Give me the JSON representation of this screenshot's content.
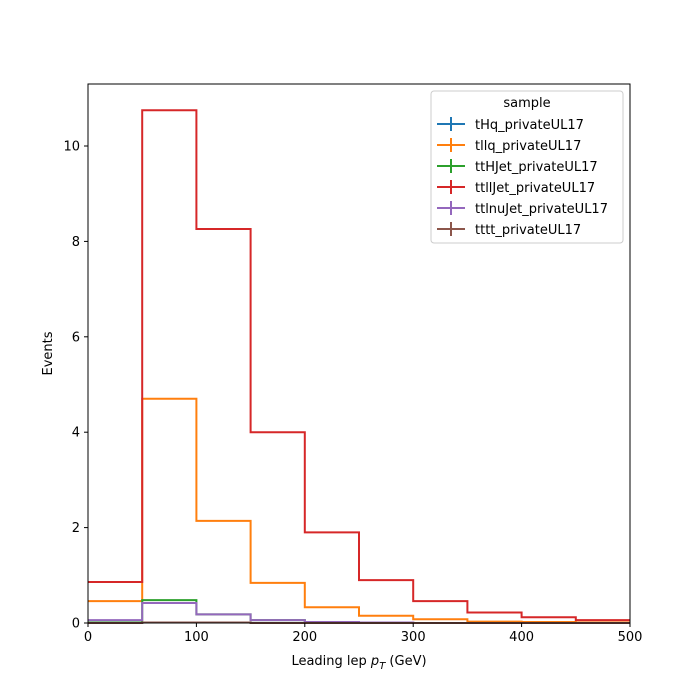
{
  "chart_data": {
    "type": "line",
    "drawstyle": "step-histogram",
    "xlabel": "Leading lep",
    "xlabel_symbol": "p",
    "xlabel_subscript": "T",
    "xlabel_unit": " (GeV)",
    "ylabel": "Events",
    "xlim": [
      0,
      500
    ],
    "ylim": [
      0,
      11.3
    ],
    "xticks": [
      0,
      100,
      200,
      300,
      400,
      500
    ],
    "yticks": [
      0,
      2,
      4,
      6,
      8,
      10
    ],
    "grid": false,
    "bin_edges": [
      0,
      50,
      100,
      150,
      200,
      250,
      300,
      350,
      400,
      450,
      500
    ],
    "legend": {
      "title": "sample",
      "placement": "top-right"
    },
    "series": [
      {
        "name": "tHq_privateUL17",
        "color": "#1f77b4",
        "values": [
          0.0,
          0.01,
          0.01,
          0.0,
          0.0,
          0.0,
          0.0,
          0.0,
          0.0,
          0.0
        ]
      },
      {
        "name": "tllq_privateUL17",
        "color": "#ff7f0e",
        "values": [
          0.46,
          4.7,
          2.14,
          0.84,
          0.33,
          0.15,
          0.08,
          0.03,
          0.02,
          0.01
        ]
      },
      {
        "name": "ttHJet_privateUL17",
        "color": "#2ca02c",
        "values": [
          0.05,
          0.48,
          0.18,
          0.06,
          0.02,
          0.01,
          0.0,
          0.0,
          0.0,
          0.0
        ]
      },
      {
        "name": "ttllJet_privateUL17",
        "color": "#d62728",
        "values": [
          0.86,
          10.75,
          8.26,
          4.0,
          1.9,
          0.9,
          0.46,
          0.22,
          0.12,
          0.06
        ]
      },
      {
        "name": "ttlnuJet_privateUL17",
        "color": "#9467bd",
        "values": [
          0.06,
          0.42,
          0.18,
          0.06,
          0.02,
          0.01,
          0.0,
          0.0,
          0.0,
          0.0
        ]
      },
      {
        "name": "tttt_privateUL17",
        "color": "#8c564b",
        "values": [
          0.0,
          0.01,
          0.01,
          0.0,
          0.0,
          0.0,
          0.0,
          0.0,
          0.0,
          0.0
        ]
      }
    ]
  }
}
